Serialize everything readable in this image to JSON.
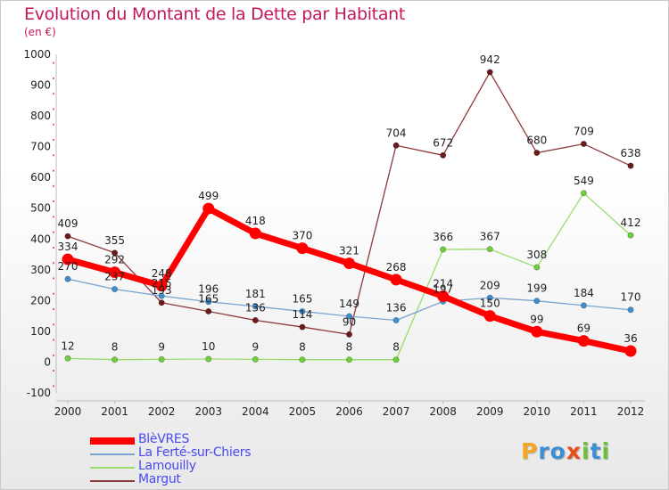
{
  "title": "Evolution du Montant de la Dette par Habitant",
  "subtitle": "(en €)",
  "chart_data": {
    "type": "line",
    "title": "Evolution du Montant de la Dette par Habitant",
    "subtitle": "(en €)",
    "xlabel": "",
    "ylabel": "",
    "x": [
      "2000",
      "2001",
      "2002",
      "2003",
      "2004",
      "2005",
      "2006",
      "2007",
      "2008",
      "2009",
      "2010",
      "2011",
      "2012"
    ],
    "ylim": [
      -100,
      1000
    ],
    "yticks": [
      -100,
      0,
      100,
      200,
      300,
      400,
      500,
      600,
      700,
      800,
      900,
      1000
    ],
    "grid": false,
    "legend": "bottom-left",
    "series": [
      {
        "name": "BlèVRES",
        "color": "#ff0000",
        "values": [
          334,
          292,
          248,
          499,
          418,
          370,
          321,
          268,
          214,
          150,
          99,
          69,
          36
        ]
      },
      {
        "name": "La Ferté-sur-Chiers",
        "color": "#7aa5cf",
        "marker": "#3f8fd0",
        "values": [
          270,
          237,
          215,
          196,
          181,
          165,
          149,
          136,
          197,
          209,
          199,
          184,
          170
        ]
      },
      {
        "name": "Lamouilly",
        "color": "#9bdb6b",
        "marker": "#6fcf3b",
        "values": [
          12,
          8,
          9,
          10,
          9,
          8,
          8,
          8,
          366,
          367,
          308,
          549,
          412
        ]
      },
      {
        "name": "Margut",
        "color": "#8b3a3a",
        "marker": "#6b1a1a",
        "values": [
          409,
          355,
          193,
          165,
          136,
          114,
          90,
          704,
          672,
          942,
          680,
          709,
          638
        ]
      }
    ]
  },
  "legend": {
    "items": [
      {
        "label": "BlèVRES",
        "color": "#ff0000"
      },
      {
        "label": "La Ferté-sur-Chiers",
        "color": "#7aa5cf"
      },
      {
        "label": "Lamouilly",
        "color": "#9bdb6b"
      },
      {
        "label": "Margut",
        "color": "#8b3a3a"
      }
    ]
  },
  "logo": {
    "text": "Proxiti",
    "letters": [
      {
        "ch": "P",
        "color": "#f5a623"
      },
      {
        "ch": "r",
        "color": "#3d8fd4"
      },
      {
        "ch": "o",
        "color": "#3d8fd4"
      },
      {
        "ch": "x",
        "color": "#e84e1b"
      },
      {
        "ch": "i",
        "color": "#6fbf3b"
      },
      {
        "ch": "t",
        "color": "#3d8fd4"
      },
      {
        "ch": "i",
        "color": "#6fbf3b"
      }
    ]
  }
}
